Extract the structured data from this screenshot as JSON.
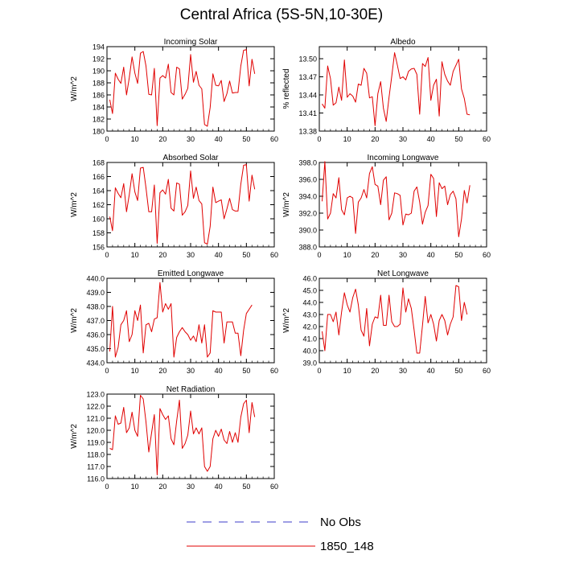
{
  "title": "Central Africa (5S-5N,10-30E)",
  "legend": {
    "items": [
      {
        "label": "No Obs",
        "color": "#3d3dc8",
        "dash": true
      },
      {
        "label": "1850_148",
        "color": "#e00000",
        "dash": false
      }
    ]
  },
  "chart_data": [
    {
      "type": "line",
      "title": "Incoming Solar",
      "ylabel": "W/m^2",
      "xlim": [
        0,
        60
      ],
      "ylim": [
        180,
        194
      ],
      "xticks": [
        "0",
        "10",
        "20",
        "30",
        "40",
        "50",
        "60"
      ],
      "yticks": [
        "180",
        "182",
        "184",
        "186",
        "188",
        "190",
        "192",
        "194"
      ],
      "series": [
        {
          "color": "#e00000",
          "x": [
            1,
            2,
            3,
            4,
            5,
            6,
            7,
            8,
            9,
            10,
            11,
            12,
            13,
            14,
            15,
            16,
            17,
            18,
            19,
            20,
            21,
            22,
            23,
            24,
            25,
            26,
            27,
            28,
            29,
            30,
            31,
            32,
            33,
            34,
            35,
            36,
            37,
            38,
            39,
            40,
            41,
            42,
            43,
            44,
            45,
            46,
            47,
            48,
            49,
            50,
            51,
            52,
            53,
            54
          ],
          "y": [
            185.2,
            182.9,
            189.6,
            188.6,
            187.9,
            190.6,
            186.0,
            188.8,
            192.3,
            189.6,
            187.9,
            192.9,
            193.2,
            190.8,
            186.1,
            186.0,
            190.4,
            180.9,
            188.8,
            189.2,
            188.8,
            191.1,
            186.4,
            186.0,
            190.6,
            190.3,
            185.3,
            186.1,
            187.1,
            192.7,
            188.1,
            189.9,
            187.6,
            187.0,
            181.1,
            180.8,
            183.9,
            189.5,
            187.6,
            187.5,
            188.4,
            184.9,
            186.2,
            188.3,
            186.3,
            186.4,
            186.4,
            190.8,
            193.4,
            193.5,
            187.5,
            191.9,
            189.5,
            null
          ]
        }
      ]
    },
    {
      "type": "line",
      "title": "Albedo",
      "ylabel": "% reflected",
      "xlim": [
        0,
        60
      ],
      "ylim": [
        13.38,
        13.52
      ],
      "xticks": [
        "0",
        "10",
        "20",
        "30",
        "40",
        "50",
        "60"
      ],
      "yticks": [
        "13.38",
        "13.41",
        "13.44",
        "13.47",
        "13.50"
      ],
      "series": [
        {
          "color": "#e00000",
          "x": [
            1,
            2,
            3,
            4,
            5,
            6,
            7,
            8,
            9,
            10,
            11,
            12,
            13,
            14,
            15,
            16,
            17,
            18,
            19,
            20,
            21,
            22,
            23,
            24,
            25,
            26,
            27,
            28,
            29,
            30,
            31,
            32,
            33,
            34,
            35,
            36,
            37,
            38,
            39,
            40,
            41,
            42,
            43,
            44,
            45,
            46,
            47,
            48,
            49,
            50,
            51,
            52,
            53,
            54
          ],
          "y": [
            13.425,
            13.418,
            13.488,
            13.467,
            13.423,
            13.427,
            13.453,
            13.431,
            13.498,
            13.436,
            13.442,
            13.438,
            13.428,
            13.458,
            13.456,
            13.484,
            13.476,
            13.435,
            13.437,
            13.389,
            13.442,
            13.462,
            13.418,
            13.396,
            13.436,
            13.471,
            13.51,
            13.489,
            13.467,
            13.47,
            13.465,
            13.479,
            13.483,
            13.484,
            13.474,
            13.408,
            13.492,
            13.487,
            13.502,
            13.431,
            13.456,
            13.466,
            13.405,
            13.495,
            13.474,
            13.463,
            13.456,
            13.479,
            13.489,
            13.499,
            13.45,
            13.434,
            13.408,
            13.407
          ]
        }
      ]
    },
    {
      "type": "line",
      "title": "Absorbed Solar",
      "ylabel": "W/m^2",
      "xlim": [
        0,
        60
      ],
      "ylim": [
        156,
        168
      ],
      "xticks": [
        "0",
        "10",
        "20",
        "30",
        "40",
        "50",
        "60"
      ],
      "yticks": [
        "156",
        "158",
        "160",
        "162",
        "164",
        "166",
        "168"
      ],
      "series": [
        {
          "color": "#e00000",
          "x": [
            1,
            2,
            3,
            4,
            5,
            6,
            7,
            8,
            9,
            10,
            11,
            12,
            13,
            14,
            15,
            16,
            17,
            18,
            19,
            20,
            21,
            22,
            23,
            24,
            25,
            26,
            27,
            28,
            29,
            30,
            31,
            32,
            33,
            34,
            35,
            36,
            37,
            38,
            39,
            40,
            41,
            42,
            43,
            44,
            45,
            46,
            47,
            48,
            49,
            50,
            51,
            52,
            53,
            54
          ],
          "y": [
            160.3,
            158.3,
            164.4,
            163.6,
            163.0,
            165.0,
            161.0,
            163.4,
            166.4,
            163.8,
            162.6,
            167.2,
            167.3,
            164.4,
            161.0,
            161.0,
            164.8,
            156.5,
            163.7,
            164.1,
            163.5,
            165.6,
            161.5,
            161.1,
            165.1,
            164.9,
            160.5,
            161.0,
            161.9,
            166.8,
            162.9,
            164.5,
            162.6,
            162.1,
            156.6,
            156.4,
            158.9,
            164.5,
            162.3,
            162.5,
            162.7,
            160.0,
            161.4,
            162.9,
            161.3,
            161.1,
            161.1,
            164.9,
            167.6,
            167.7,
            162.5,
            166.2,
            164.2,
            null
          ]
        }
      ]
    },
    {
      "type": "line",
      "title": "Incoming Longwave",
      "ylabel": "W/m^2",
      "xlim": [
        0,
        60
      ],
      "ylim": [
        388,
        398
      ],
      "xticks": [
        "0",
        "10",
        "20",
        "30",
        "40",
        "50",
        "60"
      ],
      "yticks": [
        "388.0",
        "390.0",
        "392.0",
        "394.0",
        "396.0",
        "398.0"
      ],
      "series": [
        {
          "color": "#e00000",
          "x": [
            1,
            2,
            3,
            4,
            5,
            6,
            7,
            8,
            9,
            10,
            11,
            12,
            13,
            14,
            15,
            16,
            17,
            18,
            19,
            20,
            21,
            22,
            23,
            24,
            25,
            26,
            27,
            28,
            29,
            30,
            31,
            32,
            33,
            34,
            35,
            36,
            37,
            38,
            39,
            40,
            41,
            42,
            43,
            44,
            45,
            46,
            47,
            48,
            49,
            50,
            51,
            52,
            53,
            54
          ],
          "y": [
            393.4,
            398.1,
            391.3,
            392.0,
            394.3,
            393.8,
            396.2,
            392.4,
            391.8,
            393.8,
            394.0,
            393.8,
            389.6,
            393.3,
            393.8,
            394.8,
            393.8,
            396.7,
            397.5,
            395.4,
            395.2,
            393.0,
            395.9,
            396.3,
            391.2,
            392.0,
            394.4,
            394.3,
            394.1,
            390.6,
            391.9,
            391.8,
            392.0,
            394.6,
            395.1,
            393.3,
            390.7,
            392.1,
            392.9,
            396.6,
            396.1,
            391.6,
            395.6,
            394.9,
            395.2,
            393.0,
            394.2,
            394.6,
            393.7,
            389.2,
            391.3,
            394.7,
            393.2,
            395.3
          ]
        }
      ]
    },
    {
      "type": "line",
      "title": "Emitted Longwave",
      "ylabel": "W/m^2",
      "xlim": [
        0,
        60
      ],
      "ylim": [
        434,
        440
      ],
      "xticks": [
        "0",
        "10",
        "20",
        "30",
        "40",
        "50",
        "60"
      ],
      "yticks": [
        "434.0",
        "435.0",
        "436.0",
        "437.0",
        "438.0",
        "439.0",
        "440.0"
      ],
      "series": [
        {
          "color": "#e00000",
          "x": [
            1,
            2,
            3,
            4,
            5,
            6,
            7,
            8,
            9,
            10,
            11,
            12,
            13,
            14,
            15,
            16,
            17,
            18,
            19,
            20,
            21,
            22,
            23,
            24,
            25,
            26,
            27,
            28,
            29,
            30,
            31,
            32,
            33,
            34,
            35,
            36,
            37,
            38,
            39,
            40,
            41,
            42,
            43,
            44,
            45,
            46,
            47,
            48,
            49,
            50,
            51,
            52,
            53,
            54
          ],
          "y": [
            434.8,
            438.0,
            434.4,
            435.1,
            436.7,
            437.0,
            437.7,
            435.5,
            436.0,
            437.7,
            437.0,
            438.1,
            434.7,
            436.7,
            436.8,
            436.2,
            437.1,
            437.2,
            439.7,
            437.6,
            438.2,
            437.8,
            438.2,
            434.4,
            435.8,
            436.2,
            436.5,
            436.2,
            436.0,
            435.6,
            435.9,
            435.5,
            436.7,
            435.4,
            436.7,
            434.4,
            434.7,
            437.7,
            437.6,
            437.6,
            437.6,
            435.4,
            436.9,
            436.9,
            436.9,
            436.1,
            436.1,
            434.5,
            436.3,
            437.5,
            437.8,
            438.1,
            null,
            null
          ]
        }
      ]
    },
    {
      "type": "line",
      "title": "Net Longwave",
      "ylabel": "W/m^2",
      "xlim": [
        0,
        60
      ],
      "ylim": [
        39,
        46
      ],
      "xticks": [
        "0",
        "10",
        "20",
        "30",
        "40",
        "50",
        "60"
      ],
      "yticks": [
        "39.0",
        "40.0",
        "41.0",
        "42.0",
        "43.0",
        "44.0",
        "45.0",
        "46.0"
      ],
      "series": [
        {
          "color": "#e00000",
          "x": [
            1,
            2,
            3,
            4,
            5,
            6,
            7,
            8,
            9,
            10,
            11,
            12,
            13,
            14,
            15,
            16,
            17,
            18,
            19,
            20,
            21,
            22,
            23,
            24,
            25,
            26,
            27,
            28,
            29,
            30,
            31,
            32,
            33,
            34,
            35,
            36,
            37,
            38,
            39,
            40,
            41,
            42,
            43,
            44,
            45,
            46,
            47,
            48,
            49,
            50,
            51,
            52,
            53,
            54
          ],
          "y": [
            41.6,
            40.0,
            43.0,
            43.0,
            42.4,
            43.2,
            41.3,
            43.2,
            44.8,
            43.8,
            43.2,
            44.4,
            45.1,
            43.8,
            41.7,
            41.2,
            43.5,
            40.4,
            42.2,
            42.8,
            42.7,
            44.6,
            42.1,
            42.1,
            44.6,
            42.4,
            42.0,
            42.0,
            42.2,
            45.2,
            43.2,
            44.3,
            43.5,
            41.7,
            39.8,
            39.8,
            42.1,
            44.5,
            42.3,
            43.0,
            42.2,
            40.8,
            42.5,
            43.0,
            42.5,
            41.3,
            42.2,
            42.8,
            45.4,
            45.3,
            42.5,
            44.0,
            43.0,
            null
          ]
        }
      ]
    },
    {
      "type": "line",
      "title": "Net Radiation",
      "ylabel": "W/m^2",
      "xlim": [
        0,
        60
      ],
      "ylim": [
        116,
        123
      ],
      "xticks": [
        "0",
        "10",
        "20",
        "30",
        "40",
        "50",
        "60"
      ],
      "yticks": [
        "116.0",
        "117.0",
        "118.0",
        "119.0",
        "120.0",
        "121.0",
        "122.0",
        "123.0"
      ],
      "series": [
        {
          "color": "#e00000",
          "x": [
            1,
            2,
            3,
            4,
            5,
            6,
            7,
            8,
            9,
            10,
            11,
            12,
            13,
            14,
            15,
            16,
            17,
            18,
            19,
            20,
            21,
            22,
            23,
            24,
            25,
            26,
            27,
            28,
            29,
            30,
            31,
            32,
            33,
            34,
            35,
            36,
            37,
            38,
            39,
            40,
            41,
            42,
            43,
            44,
            45,
            46,
            47,
            48,
            49,
            50,
            51,
            52,
            53,
            54
          ],
          "y": [
            118.5,
            118.4,
            121.2,
            120.5,
            120.6,
            121.9,
            119.8,
            120.2,
            121.5,
            120.0,
            119.5,
            122.9,
            122.6,
            120.7,
            118.2,
            119.8,
            121.3,
            116.3,
            121.8,
            121.3,
            120.9,
            121.2,
            119.3,
            118.8,
            120.8,
            122.5,
            118.5,
            118.9,
            119.6,
            121.6,
            119.7,
            120.2,
            119.7,
            120.2,
            117.0,
            116.6,
            117.0,
            119.3,
            120.0,
            119.5,
            120.1,
            119.2,
            118.9,
            119.9,
            119.0,
            119.8,
            119.0,
            121.1,
            122.2,
            122.5,
            119.8,
            122.3,
            121.1,
            null
          ]
        }
      ]
    }
  ]
}
